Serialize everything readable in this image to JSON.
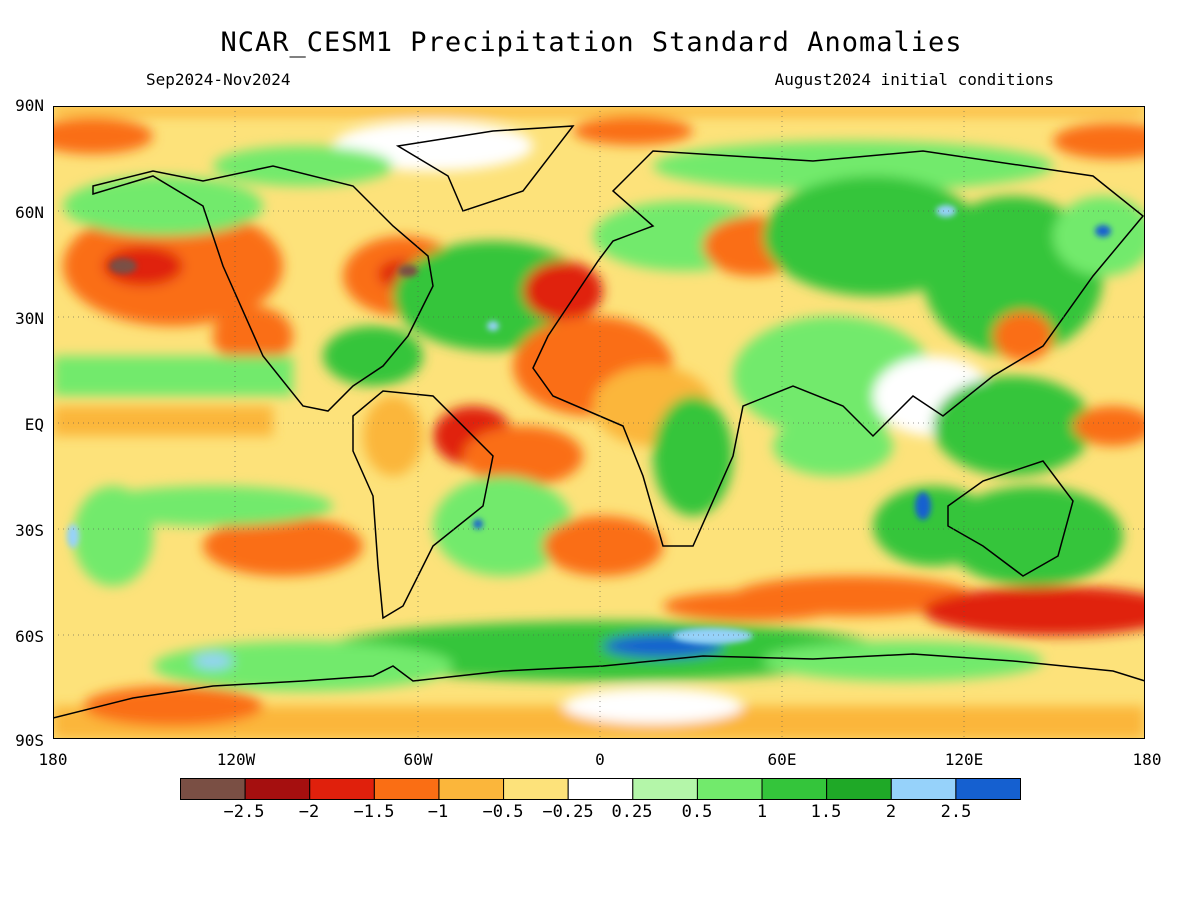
{
  "title": "NCAR_CESM1 Precipitation Standard Anomalies",
  "season": "Sep2024-Nov2024",
  "init": "August2024 initial conditions",
  "map": {
    "projection": "equirectangular",
    "lat_range": [
      -90,
      90
    ],
    "lon_range": [
      -180,
      180
    ],
    "grid": "dotted",
    "lat_labels": [
      "90N",
      "60N",
      "30N",
      "EQ",
      "30S",
      "60S",
      "90S"
    ],
    "lon_labels": [
      "180",
      "120W",
      "60W",
      "0",
      "60E",
      "120E",
      "180"
    ]
  },
  "colorbar": {
    "colors": [
      "#7a4f44",
      "#a50f0f",
      "#e0200c",
      "#fa6e14",
      "#fbb63b",
      "#fde27a",
      "#ffffff",
      "#b4f6a9",
      "#72ea6c",
      "#34c53b",
      "#1fa927",
      "#96d2fa",
      "#1560d0"
    ],
    "labels": [
      "−2.5",
      "−2",
      "−1.5",
      "−1",
      "−0.5",
      "−0.25",
      "0.25",
      "0.5",
      "1",
      "1.5",
      "2",
      "2.5"
    ]
  }
}
